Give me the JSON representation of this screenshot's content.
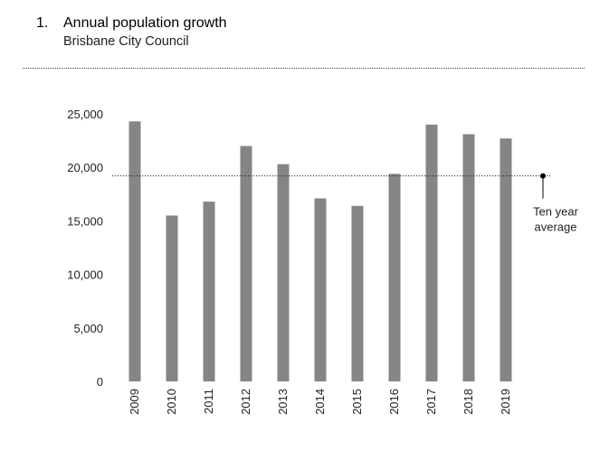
{
  "header": {
    "number": "1.",
    "title": "Annual population growth",
    "subtitle": "Brisbane City Council"
  },
  "chart_data": {
    "type": "bar",
    "categories": [
      "2009",
      "2010",
      "2011",
      "2012",
      "2013",
      "2014",
      "2015",
      "2016",
      "2017",
      "2018",
      "2019"
    ],
    "values": [
      24300,
      15500,
      16800,
      22000,
      20300,
      17100,
      16400,
      19400,
      24000,
      23100,
      22700
    ],
    "ylim": [
      0,
      25000
    ],
    "yticks": [
      0,
      5000,
      10000,
      15000,
      20000,
      25000
    ],
    "ytick_labels": [
      "0",
      "5,000",
      "10,000",
      "15,000",
      "20,000",
      "25,000"
    ],
    "grid": false,
    "bar_color": "#858585",
    "reference_line": {
      "value": 19200,
      "label_lines": [
        "Ten year",
        "average"
      ]
    }
  }
}
